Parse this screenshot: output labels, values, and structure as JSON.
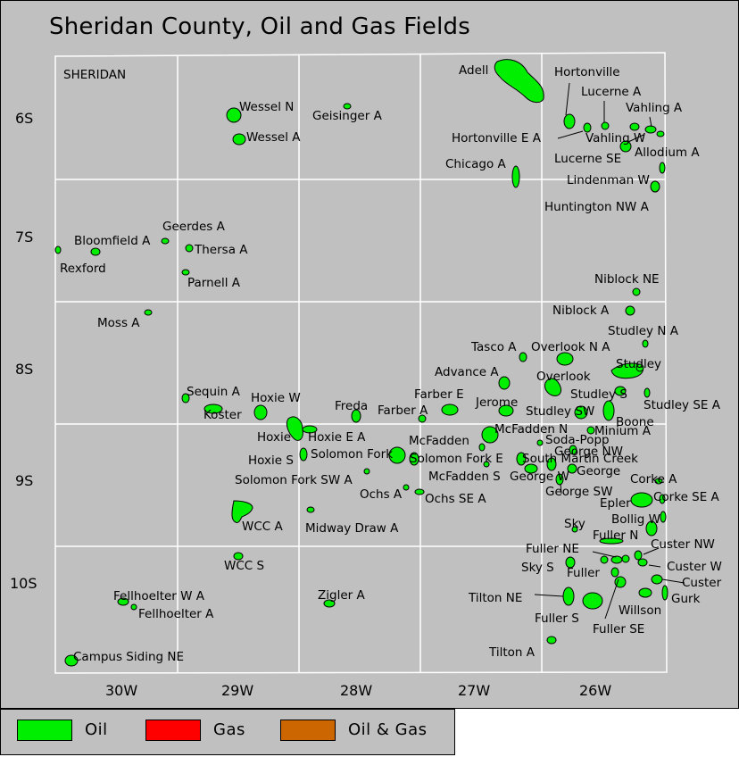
{
  "title": "Sheridan County, Oil and Gas Fields",
  "county_label": "SHERIDAN",
  "townships": [
    "6S",
    "7S",
    "8S",
    "9S",
    "10S"
  ],
  "ranges": [
    "30W",
    "29W",
    "28W",
    "27W",
    "26W"
  ],
  "colors": {
    "oil": "#00ee00",
    "gas": "#ff0000",
    "oil_and_gas": "#cc6600",
    "background": "#c0c0c0",
    "grid": "#ffffff"
  },
  "fields": [
    "Adell",
    "Hortonville",
    "Lucerne A",
    "Vahling A",
    "Wessel N",
    "Geisinger A",
    "Wessel A",
    "Hortonville E A",
    "Vahling W",
    "Allodium A",
    "Lucerne SE",
    "Chicago A",
    "Lindenman W",
    "Huntington NW A",
    "Geerdes A",
    "Bloomfield A",
    "Thersa A",
    "Rexford",
    "Parnell A",
    "Niblock NE",
    "Niblock A",
    "Moss A",
    "Studley N A",
    "Tasco A",
    "Overlook N A",
    "Studley",
    "Advance A",
    "Overlook",
    "Sequin A",
    "Hoxie W",
    "Farber E",
    "Jerome",
    "Studley S",
    "Koster",
    "Freda",
    "Farber A",
    "Studley SW",
    "Studley SE A",
    "Boone",
    "McFadden N",
    "Minium A",
    "Hoxie",
    "Hoxie E A",
    "McFadden",
    "Soda-Popp",
    "George NW",
    "Hoxie S",
    "Solomon Fork",
    "Solomon Fork E",
    "South Martin Creek",
    "George",
    "McFadden S",
    "George W",
    "Corke A",
    "Solomon Fork SW A",
    "Ochs A",
    "George SW",
    "Ochs SE A",
    "Corke SE A",
    "Epler",
    "WCC A",
    "Midway Draw A",
    "Bollig W",
    "Sky",
    "Fuller N",
    "Custer NW",
    "Fuller NE",
    "WCC S",
    "Sky S",
    "Fuller",
    "Custer W",
    "Custer",
    "Fellhoelter W A",
    "Zigler A",
    "Tilton NE",
    "Gurk",
    "Fellhoelter A",
    "Willson",
    "Fuller S",
    "Fuller SE",
    "Tilton A",
    "Campus Siding NE"
  ],
  "legend": [
    {
      "label": "Oil",
      "color": "#00ee00"
    },
    {
      "label": "Gas",
      "color": "#ff0000"
    },
    {
      "label": "Oil & Gas",
      "color": "#cc6600"
    }
  ]
}
